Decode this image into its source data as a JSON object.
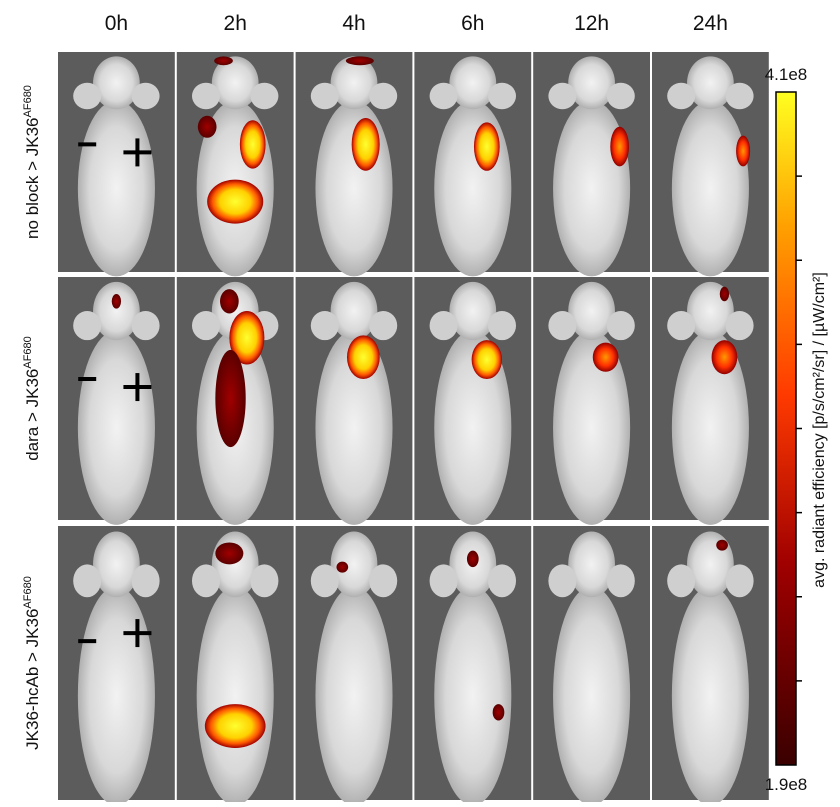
{
  "column_labels": [
    "0h",
    "2h",
    "4h",
    "6h",
    "12h",
    "24h"
  ],
  "row_labels": [
    {
      "text": "no block > JK36",
      "sup": "AF680"
    },
    {
      "text": "dara > JK36",
      "sup": "AF680"
    },
    {
      "text": "JK36-hcAb  > JK36",
      "sup": "AF680"
    }
  ],
  "colorbar": {
    "max_label": "4.1e8",
    "min_label": "1.9e8",
    "title": "avg. radiant efficiency [p/s/cm²/sr] / [µW/cm²]"
  }
}
